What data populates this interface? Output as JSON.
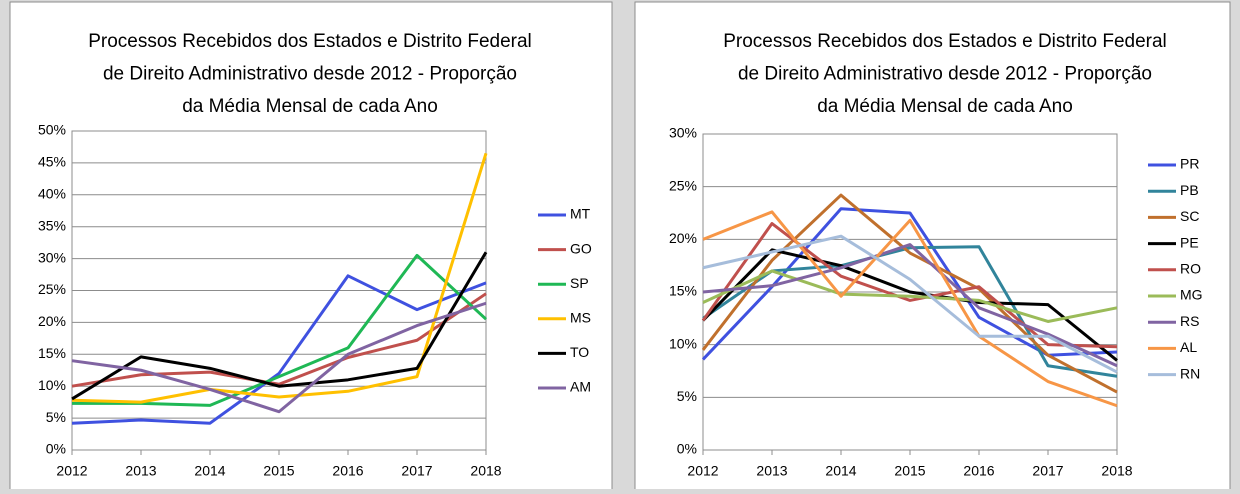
{
  "chart_data": [
    {
      "type": "line",
      "title": [
        "Processos Recebidos dos Estados e Distrito Federal",
        "de Direito Administrativo desde 2012 - Proporção",
        "da Média Mensal de cada Ano"
      ],
      "x": [
        2012,
        2013,
        2014,
        2015,
        2016,
        2017,
        2018
      ],
      "xlim": [
        2012,
        2018
      ],
      "xticks": [
        2012,
        2013,
        2014,
        2015,
        2016,
        2017,
        2018
      ],
      "ylim": [
        0,
        50
      ],
      "yticks": [
        {
          "value": 0,
          "label": "0%"
        },
        {
          "value": 5,
          "label": "5%"
        },
        {
          "value": 10,
          "label": "10%"
        },
        {
          "value": 15,
          "label": "15%"
        },
        {
          "value": 20,
          "label": "20%"
        },
        {
          "value": 25,
          "label": "25%"
        },
        {
          "value": 30,
          "label": "30%"
        },
        {
          "value": 35,
          "label": "35%"
        },
        {
          "value": 40,
          "label": "40%"
        },
        {
          "value": 45,
          "label": "45%"
        },
        {
          "value": 50,
          "label": "50%"
        }
      ],
      "grid": true,
      "legend": "right",
      "series": [
        {
          "name": "MT",
          "color": "#3f51e0",
          "values": [
            4.2,
            4.7,
            4.2,
            12,
            27.3,
            22,
            26.2
          ]
        },
        {
          "name": "GO",
          "color": "#c0504d",
          "values": [
            10,
            11.8,
            12.2,
            10.3,
            14.5,
            17.2,
            24.5
          ]
        },
        {
          "name": "SP",
          "color": "#1fb855",
          "values": [
            7.3,
            7.3,
            7,
            11.5,
            16,
            30.5,
            20.5
          ]
        },
        {
          "name": "MS",
          "color": "#ffc000",
          "values": [
            7.8,
            7.5,
            9.5,
            8.3,
            9.2,
            11.5,
            46.5
          ]
        },
        {
          "name": "TO",
          "color": "#000000",
          "values": [
            8,
            14.6,
            12.8,
            10,
            11,
            12.8,
            31
          ]
        },
        {
          "name": "AM",
          "color": "#8064a2",
          "values": [
            14,
            12.5,
            9.5,
            6,
            15,
            19.5,
            23
          ]
        }
      ]
    },
    {
      "type": "line",
      "title": [
        "Processos Recebidos dos Estados e Distrito Federal",
        "de Direito Administrativo desde 2012 - Proporção",
        "da Média Mensal de cada Ano"
      ],
      "x": [
        2012,
        2013,
        2014,
        2015,
        2016,
        2017,
        2018
      ],
      "xlim": [
        2012,
        2018
      ],
      "xticks": [
        2012,
        2013,
        2014,
        2015,
        2016,
        2017,
        2018
      ],
      "ylim": [
        0,
        30
      ],
      "yticks": [
        {
          "value": 0,
          "label": "0%"
        },
        {
          "value": 5,
          "label": "5%"
        },
        {
          "value": 10,
          "label": "10%"
        },
        {
          "value": 15,
          "label": "15%"
        },
        {
          "value": 20,
          "label": "20%"
        },
        {
          "value": 25,
          "label": "25%"
        },
        {
          "value": 30,
          "label": "30%"
        }
      ],
      "grid": true,
      "legend": "right",
      "series": [
        {
          "name": "PR",
          "color": "#3f51e0",
          "values": [
            8.6,
            15.5,
            22.9,
            22.5,
            12.6,
            9,
            9.3
          ]
        },
        {
          "name": "PB",
          "color": "#31849b",
          "values": [
            12.5,
            17,
            17.5,
            19.2,
            19.3,
            8,
            7
          ]
        },
        {
          "name": "SC",
          "color": "#c0702d",
          "values": [
            9.5,
            18,
            24.2,
            18.7,
            15.3,
            9,
            5.5
          ]
        },
        {
          "name": "PE",
          "color": "#000000",
          "values": [
            12.3,
            19,
            17.5,
            15,
            14,
            13.8,
            8.5
          ]
        },
        {
          "name": "RO",
          "color": "#c0504d",
          "values": [
            12.3,
            21.5,
            16.5,
            14.2,
            15.5,
            10,
            9.8
          ]
        },
        {
          "name": "MG",
          "color": "#9bbb59",
          "values": [
            14,
            17,
            14.8,
            14.6,
            14.2,
            12.2,
            13.5
          ]
        },
        {
          "name": "RS",
          "color": "#8064a2",
          "values": [
            15,
            15.6,
            17.3,
            19.5,
            13.5,
            11,
            8
          ]
        },
        {
          "name": "AL",
          "color": "#f79646",
          "values": [
            20,
            22.6,
            14.6,
            21.8,
            10.8,
            6.5,
            4.2
          ]
        },
        {
          "name": "RN",
          "color": "#a6bddb",
          "values": [
            17.3,
            18.8,
            20.3,
            16.2,
            10.8,
            10.8,
            7.4
          ]
        }
      ]
    }
  ]
}
